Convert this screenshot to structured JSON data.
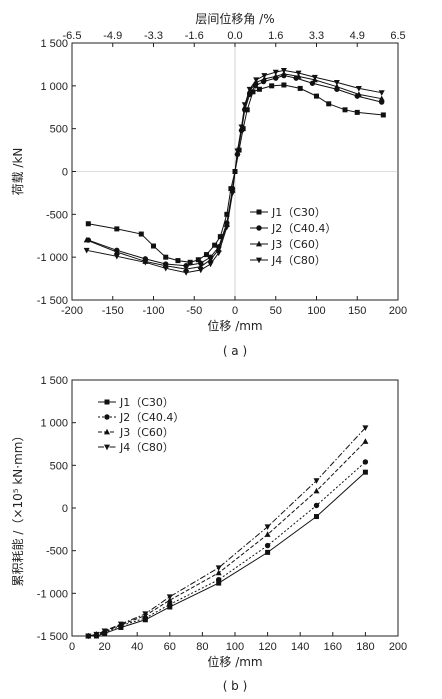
{
  "chart_data": [
    {
      "type": "line",
      "panel_label": "( a )",
      "xlabel": "位移 /mm",
      "ylabel": "荷载 /kN",
      "x2label": "层间位移角 /%",
      "xlim": [
        -200,
        200
      ],
      "ylim": [
        -1500,
        1500
      ],
      "x_ticks": [
        "-200",
        "-150",
        "-100",
        "-50",
        "0",
        "50",
        "100",
        "150",
        "200"
      ],
      "y_ticks": [
        "-1 500",
        "-1 000",
        "-500",
        "0",
        "500",
        "1 000",
        "1 500"
      ],
      "x2_ticks": [
        "-6.5",
        "-4.9",
        "-3.3",
        "-1.6",
        "0.0",
        "1.6",
        "3.3",
        "4.9",
        "6.5"
      ],
      "grid": false,
      "legend_position": "lower-right",
      "series": [
        {
          "name": "J1（C30）",
          "marker": "square",
          "x": [
            -180,
            -145,
            -115,
            -100,
            -85,
            -70,
            -55,
            -45,
            -35,
            -25,
            -18,
            -10,
            -5,
            0,
            5,
            10,
            15,
            22,
            30,
            45,
            60,
            80,
            100,
            115,
            135,
            150,
            182
          ],
          "y": [
            -610,
            -670,
            -730,
            -870,
            -1000,
            -1040,
            -1060,
            -1030,
            -970,
            -860,
            -760,
            -500,
            -200,
            0,
            250,
            500,
            720,
            930,
            960,
            1000,
            1010,
            970,
            880,
            790,
            720,
            690,
            660
          ]
        },
        {
          "name": "J2（C40.4）",
          "marker": "circle",
          "x": [
            -180,
            -145,
            -110,
            -85,
            -60,
            -42,
            -30,
            -20,
            -10,
            -3,
            3,
            8,
            12,
            18,
            25,
            35,
            50,
            60,
            75,
            95,
            125,
            150,
            180
          ],
          "y": [
            -800,
            -920,
            -1020,
            -1080,
            -1100,
            -1070,
            -1000,
            -880,
            -600,
            -200,
            200,
            480,
            720,
            900,
            1000,
            1050,
            1090,
            1120,
            1090,
            1030,
            960,
            880,
            810
          ]
        },
        {
          "name": "J3（C60）",
          "marker": "triangle",
          "x": [
            -182,
            -145,
            -110,
            -85,
            -60,
            -42,
            -30,
            -20,
            -10,
            -3,
            3,
            8,
            12,
            18,
            26,
            36,
            50,
            60,
            78,
            98,
            125,
            152,
            180
          ],
          "y": [
            -800,
            -940,
            -1050,
            -1100,
            -1140,
            -1110,
            -1030,
            -910,
            -620,
            -220,
            220,
            500,
            750,
            940,
            1040,
            1080,
            1110,
            1140,
            1110,
            1070,
            990,
            900,
            850
          ]
        },
        {
          "name": "J4（C80）",
          "marker": "triangle-down",
          "x": [
            -182,
            -145,
            -110,
            -85,
            -60,
            -42,
            -30,
            -20,
            -10,
            -3,
            3,
            8,
            12,
            18,
            26,
            36,
            50,
            60,
            78,
            98,
            125,
            152,
            180
          ],
          "y": [
            -920,
            -990,
            -1060,
            -1130,
            -1180,
            -1150,
            -1080,
            -950,
            -650,
            -250,
            240,
            520,
            780,
            960,
            1070,
            1120,
            1160,
            1180,
            1150,
            1100,
            1040,
            970,
            920
          ]
        }
      ]
    },
    {
      "type": "line",
      "panel_label": "( b )",
      "xlabel": "位移 /mm",
      "ylabel": "累积耗能 /（×10⁵ kN·mm）",
      "xlim": [
        0,
        200
      ],
      "ylim": [
        -1500,
        1500
      ],
      "x_ticks": [
        "0",
        "20",
        "40",
        "60",
        "80",
        "100",
        "120",
        "140",
        "160",
        "180",
        "200"
      ],
      "y_ticks": [
        "-1 500",
        "-1 000",
        "-500",
        "0",
        "500",
        "1 000",
        "1 500"
      ],
      "grid": false,
      "legend_position": "upper-left",
      "series": [
        {
          "name": "J1（C30）",
          "marker": "square",
          "x": [
            10,
            15,
            20,
            30,
            45,
            60,
            90,
            120,
            150,
            180
          ],
          "y": [
            -1500,
            -1500,
            -1470,
            -1400,
            -1310,
            -1160,
            -880,
            -520,
            -100,
            420
          ]
        },
        {
          "name": "J2（C40.4）",
          "marker": "circle",
          "x": [
            10,
            15,
            20,
            30,
            45,
            60,
            90,
            120,
            150,
            180
          ],
          "y": [
            -1500,
            -1490,
            -1460,
            -1380,
            -1290,
            -1130,
            -840,
            -440,
            30,
            540
          ]
        },
        {
          "name": "J3（C60）",
          "marker": "triangle",
          "x": [
            10,
            15,
            20,
            30,
            45,
            60,
            90,
            120,
            150,
            180
          ],
          "y": [
            -1500,
            -1480,
            -1450,
            -1370,
            -1260,
            -1080,
            -760,
            -310,
            200,
            780
          ]
        },
        {
          "name": "J4（C80）",
          "marker": "triangle-down",
          "x": [
            10,
            15,
            20,
            30,
            45,
            60,
            90,
            120,
            150,
            180
          ],
          "y": [
            -1500,
            -1480,
            -1440,
            -1360,
            -1240,
            -1040,
            -700,
            -220,
            320,
            940
          ]
        }
      ]
    }
  ]
}
